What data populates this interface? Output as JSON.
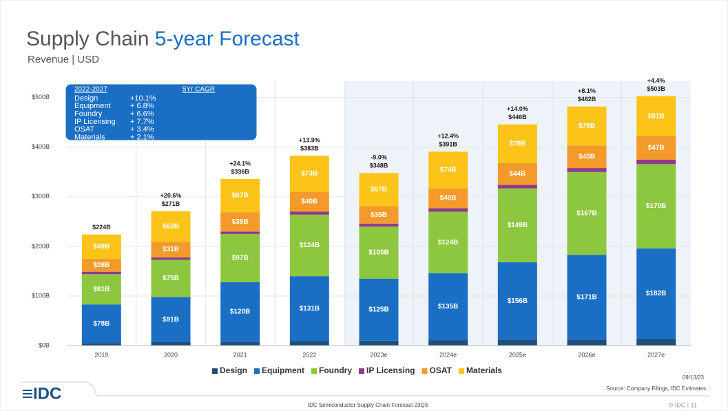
{
  "header": {
    "title": "Supply Chain",
    "title_highlight": "5-year Forecast",
    "subtitle": "Revenue | USD"
  },
  "chart_data": {
    "type": "bar",
    "stacked": true,
    "categories": [
      "2019",
      "2020",
      "2021",
      "2022",
      "2023e",
      "2024e",
      "2025e",
      "2026e",
      "2027e"
    ],
    "series": [
      {
        "name": "Design",
        "color": "#1f4e79",
        "values": [
          5,
          7,
          8,
          9,
          10,
          11,
          12,
          12,
          14
        ]
      },
      {
        "name": "Equipment",
        "color": "#1a6fc4",
        "values": [
          78,
          91,
          120,
          131,
          125,
          135,
          156,
          171,
          182
        ],
        "value_labels": [
          "$78B",
          "$91B",
          "$120B",
          "$131B",
          "$125B",
          "$135B",
          "$156B",
          "$171B",
          "$182B"
        ]
      },
      {
        "name": "Foundry",
        "color": "#8dc63f",
        "values": [
          61,
          75,
          97,
          124,
          105,
          124,
          149,
          167,
          170
        ],
        "value_labels": [
          "$61B",
          "$75B",
          "$97B",
          "$124B",
          "$105B",
          "$124B",
          "$149B",
          "$167B",
          "$170B"
        ]
      },
      {
        "name": "IP Licensing",
        "color": "#8e3a8e",
        "values": [
          5,
          5,
          5,
          6,
          6,
          7,
          7,
          8,
          9
        ]
      },
      {
        "name": "OSAT",
        "color": "#f39a2b",
        "values": [
          26,
          31,
          39,
          40,
          35,
          40,
          44,
          45,
          47
        ],
        "value_labels": [
          "$26B",
          "$31B",
          "$39B",
          "$40B",
          "$35B",
          "$40B",
          "$44B",
          "$45B",
          "$47B"
        ]
      },
      {
        "name": "Materials",
        "color": "#fcc419",
        "values": [
          49,
          62,
          67,
          73,
          67,
          74,
          78,
          79,
          81
        ],
        "value_labels": [
          "$49B",
          "$62B",
          "$67B",
          "$73B",
          "$67B",
          "$74B",
          "$78B",
          "$79B",
          "$81B"
        ]
      }
    ],
    "totals": {
      "values": [
        224,
        271,
        336,
        383,
        348,
        391,
        446,
        482,
        503
      ],
      "value_labels": [
        "$224B",
        "$271B",
        "$336B",
        "$383B",
        "$348B",
        "$391B",
        "$446B",
        "$482B",
        "$503B"
      ]
    },
    "growth": {
      "values": [
        null,
        20.6,
        24.1,
        13.9,
        -9.0,
        12.4,
        14.0,
        8.1,
        4.4
      ],
      "value_labels": [
        null,
        "+20.6%",
        "+24.1%",
        "+13.9%",
        "-9.0%",
        "+12.4%",
        "+14.0%",
        "+8.1%",
        "+4.4%"
      ]
    },
    "ylim": [
      0,
      533
    ],
    "yticks": [
      {
        "value": 0,
        "label": "$0B"
      },
      {
        "value": 100,
        "label": "$100B"
      },
      {
        "value": 200,
        "label": "$200B"
      },
      {
        "value": 300,
        "label": "$300B"
      },
      {
        "value": 400,
        "label": "$400B"
      },
      {
        "value": 500,
        "label": "$500B"
      }
    ],
    "grid": true,
    "legend": "bottom",
    "cagr_box": {
      "period": "2022-2027",
      "heading": "5Yr CAGR",
      "rows": [
        [
          "Design",
          "+10.1%"
        ],
        [
          "Equipment",
          "+ 6.8%"
        ],
        [
          "Foundry",
          "+ 6.6%"
        ],
        [
          "IP Licensing",
          "+ 7.7%"
        ],
        [
          "OSAT",
          "+ 3.4%"
        ],
        [
          "Materials",
          "+ 2.1%"
        ]
      ]
    }
  },
  "footer": {
    "date": "09/13/23",
    "source": "Source: Company Filings, IDC Estimates",
    "center": "IDC Semiconductor Supply Chain Forecast 23Q3",
    "page": "© IDC | 11",
    "logo": "IDC"
  }
}
